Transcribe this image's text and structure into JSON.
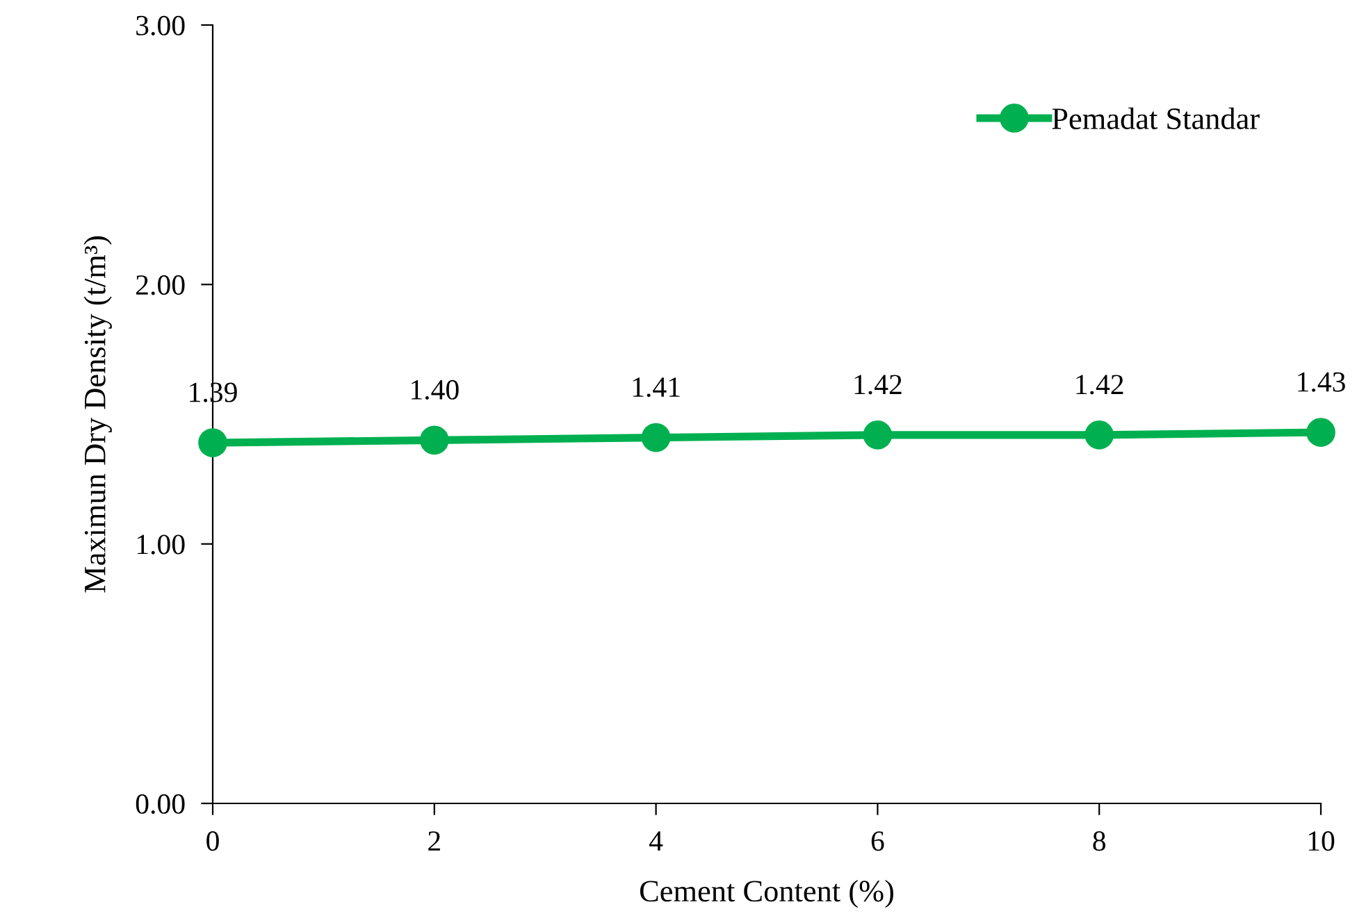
{
  "chart_data": {
    "type": "line",
    "xlabel": "Cement Content (%)",
    "ylabel": "Maximun Dry Density (t/m³)",
    "x": [
      0,
      2,
      4,
      6,
      8,
      10
    ],
    "series": [
      {
        "name": "Pemadat Standar",
        "color": "#00b050",
        "values": [
          1.39,
          1.4,
          1.41,
          1.42,
          1.42,
          1.43
        ],
        "value_labels": [
          "1.39",
          "1.40",
          "1.41",
          "1.42",
          "1.42",
          "1.43"
        ]
      }
    ],
    "xlim": [
      0,
      10
    ],
    "xticks": [
      0,
      2,
      4,
      6,
      8,
      10
    ],
    "ylim": [
      0,
      3
    ],
    "yticks": [
      {
        "value": 0,
        "label": "0.00"
      },
      {
        "value": 1,
        "label": "1.00"
      },
      {
        "value": 2,
        "label": "2.00"
      },
      {
        "value": 3,
        "label": "3.00"
      }
    ],
    "grid": false,
    "legend": "top right",
    "marker": "circle",
    "line_style": "solid"
  }
}
